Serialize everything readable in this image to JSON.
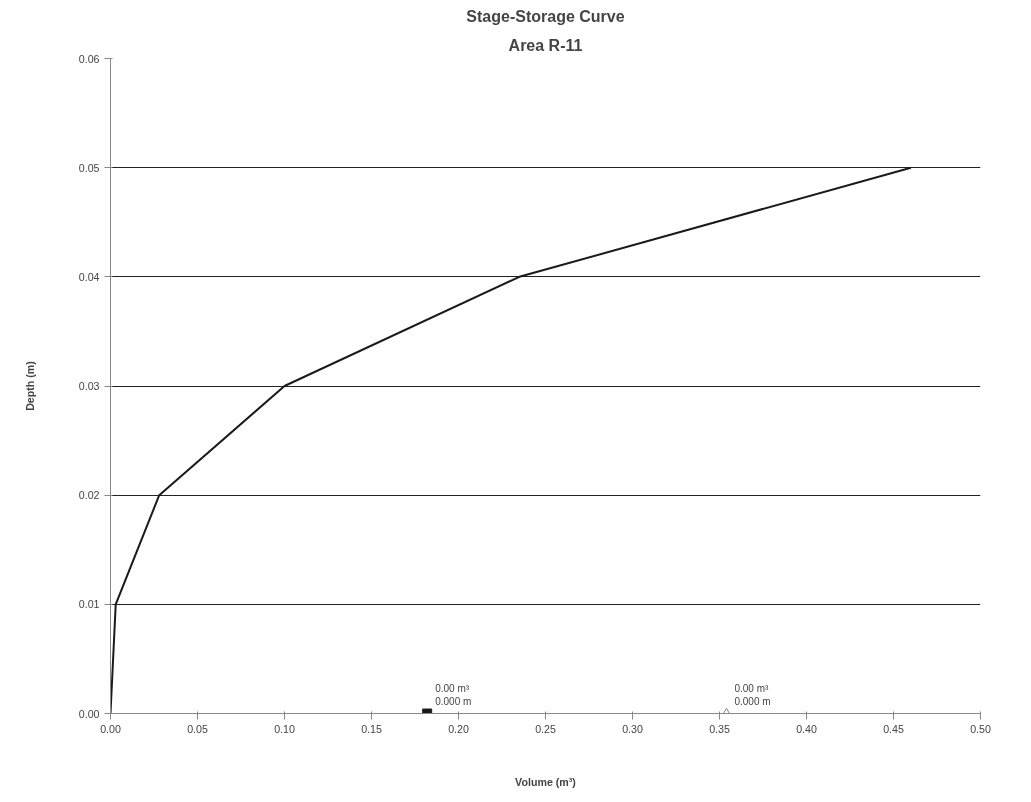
{
  "chart_data": {
    "type": "line",
    "title": "Stage-Storage Curve",
    "subtitle": "Area R-11",
    "xlabel": "Volume (m³)",
    "ylabel": "Depth (m)",
    "xlim": [
      0,
      0.5
    ],
    "xticks": [
      {
        "value": 0,
        "label": "0.00"
      },
      0.05,
      {
        "value": 0.1,
        "label": "0.10"
      },
      0.15,
      {
        "value": 0.2,
        "label": "0.20"
      },
      0.25,
      {
        "value": 0.3,
        "label": "0.30"
      },
      0.35,
      {
        "value": 0.4,
        "label": "0.40"
      },
      0.45,
      {
        "value": 0.5,
        "label": "0.50"
      }
    ],
    "ylim": [
      0,
      0.06
    ],
    "yticks": [
      {
        "value": 0,
        "label": "0.00"
      },
      0.01,
      0.02,
      0.03,
      0.04,
      0.05,
      0.06
    ],
    "grid": "y",
    "series": [
      {
        "type": "line",
        "color": "#1a1a1a",
        "x": [
          0,
          0.003,
          0.028,
          0.1,
          0.235,
          0.46
        ],
        "values": [
          0,
          0.01,
          0.02,
          0.03,
          0.04,
          0.05
        ]
      },
      {
        "type": "scatter",
        "marker": "square",
        "color": "#1a1a1a",
        "x": [
          0.182
        ],
        "values": [
          0
        ]
      },
      {
        "type": "scatter",
        "marker": "triangle",
        "color": "#808080",
        "x": [
          0.354
        ],
        "values": [
          0
        ]
      }
    ],
    "annotations": [
      {
        "text": "0.00 m³\n0.000 m",
        "x": 0.182,
        "y": 0
      },
      {
        "text": "0.00 m³\n0.000 m",
        "x": 0.354,
        "y": 0
      }
    ]
  }
}
